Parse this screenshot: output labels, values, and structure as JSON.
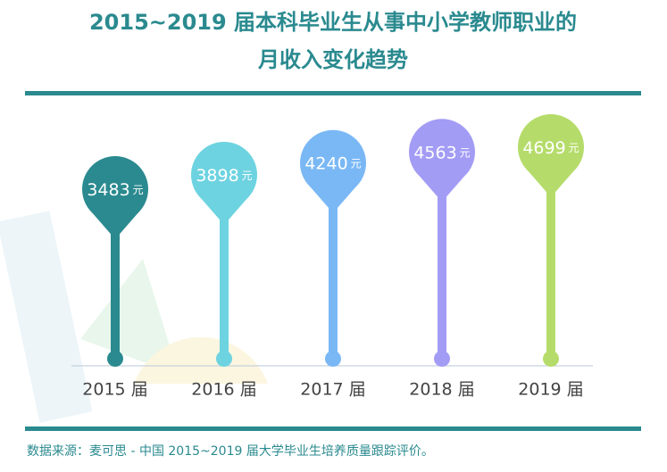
{
  "chart_data": {
    "type": "pin",
    "title": [
      "2015~2019 届本科毕业生从事中小学教师职业的",
      "月收入变化趋势"
    ],
    "categories": [
      "2015 届",
      "2016 届",
      "2017 届",
      "2018 届",
      "2019 届"
    ],
    "values": [
      3483,
      3898,
      4240,
      4563,
      4699
    ],
    "unit": "元",
    "colors": [
      "#2a8a8f",
      "#6dd3e0",
      "#7ab8f5",
      "#a39cf5",
      "#b5dc6a"
    ],
    "source": "数据来源：麦可思 - 中国 2015~2019 届大学毕业生培养质量跟踪评价。"
  }
}
